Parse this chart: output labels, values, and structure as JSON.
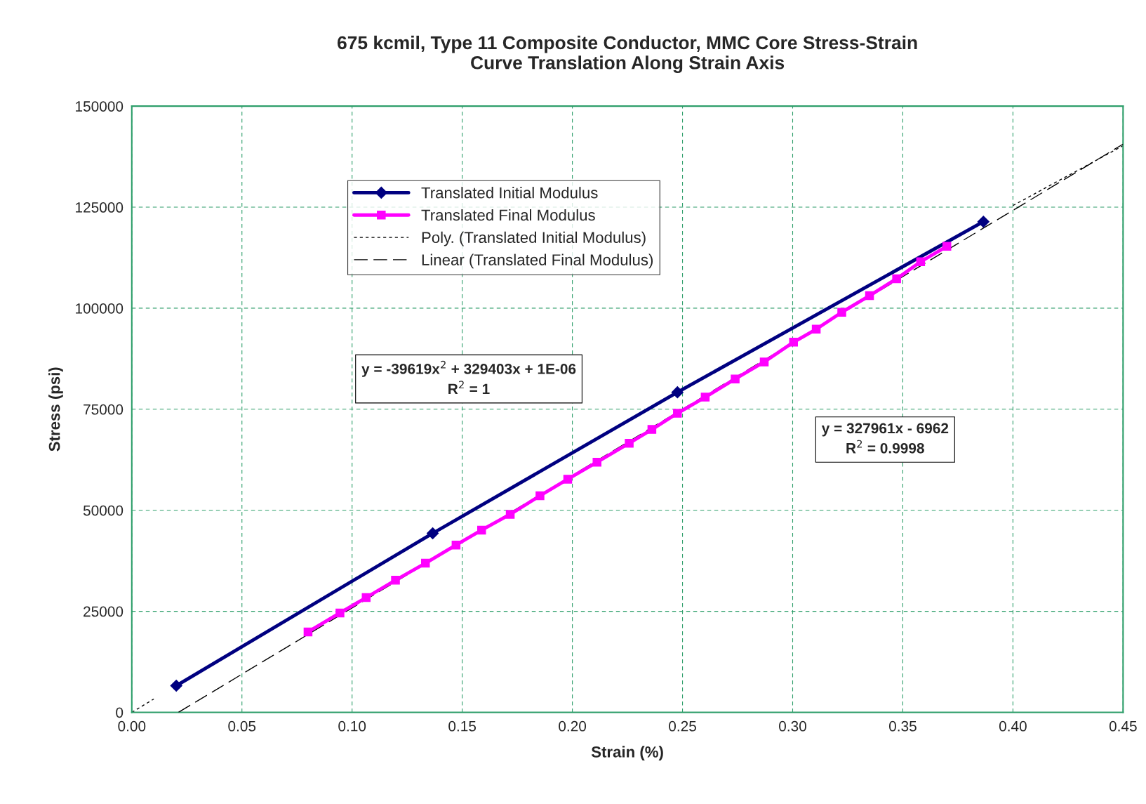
{
  "chart_data": {
    "type": "line",
    "title": "675 kcmil, Type 11 Composite Conductor, MMC Core Stress-Strain\nCurve Translation Along Strain Axis",
    "xlabel": "Strain (%)",
    "ylabel": "Stress (psi)",
    "xlim": [
      0,
      0.45
    ],
    "xticks": [
      {
        "value": 0,
        "label": "0.00"
      },
      0.05,
      {
        "value": 0.1,
        "label": "0.10"
      },
      0.15,
      {
        "value": 0.2,
        "label": "0.20"
      },
      0.25,
      {
        "value": 0.3,
        "label": "0.30"
      },
      0.35,
      {
        "value": 0.4,
        "label": "0.40"
      },
      0.45
    ],
    "ylim": [
      0,
      150000
    ],
    "yticks": [
      0,
      25000,
      50000,
      75000,
      100000,
      125000,
      150000
    ],
    "grid": true,
    "legend": "top left",
    "series": [
      {
        "name": "Poly. (Translated Initial Modulus)",
        "color": "#000000",
        "line_style": "dotted",
        "marker": "none",
        "x": [
          0,
          0.01,
          0.2,
          0.4,
          0.425,
          0.45
        ],
        "values": [
          0,
          3300,
          null,
          125400,
          132800,
          140200
        ]
      },
      {
        "name": "Linear (Translated Final Modulus)",
        "color": "#000000",
        "line_style": "dashed",
        "marker": "none",
        "x": [
          0.0212,
          0.45
        ],
        "values": [
          0,
          140600
        ]
      },
      {
        "name": "Translated Initial Modulus",
        "color": "#000080",
        "line_style": "solid",
        "marker": "diamond",
        "x": [
          0.0202,
          0.1366,
          0.2477,
          0.3866
        ],
        "values": [
          6600,
          44300,
          79200,
          121400
        ]
      },
      {
        "name": "Translated Final Modulus",
        "color": "#ff00ff",
        "line_style": "solid",
        "marker": "square",
        "x": [
          0.08,
          0.0945,
          0.1064,
          0.1197,
          0.1333,
          0.1472,
          0.1588,
          0.1718,
          0.1853,
          0.1979,
          0.2112,
          0.2258,
          0.2361,
          0.2477,
          0.2603,
          0.2739,
          0.2871,
          0.3004,
          0.3107,
          0.3223,
          0.3349,
          0.3472,
          0.3581,
          0.37
        ],
        "values": [
          19900,
          24600,
          28400,
          32700,
          36900,
          41400,
          45100,
          49000,
          53600,
          57700,
          61900,
          66600,
          70000,
          74000,
          78000,
          82500,
          86700,
          91600,
          94800,
          99000,
          103100,
          107300,
          111500,
          115300
        ]
      }
    ],
    "annotations": [
      "y = -39619x$^{2}$ + 329403x + 1E-06\nR$^{2}$ = 1",
      "y = 327961x - 6962\nR$^{2}$ = 0.9998"
    ]
  }
}
